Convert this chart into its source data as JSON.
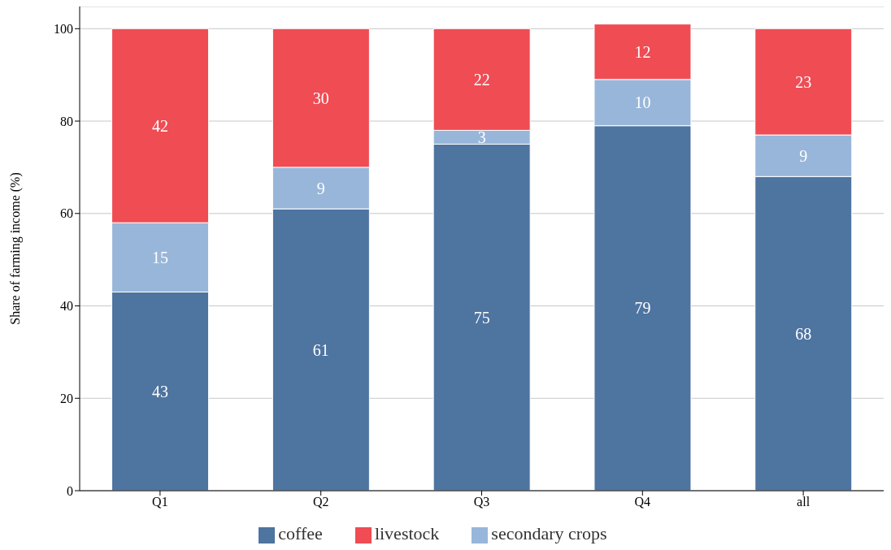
{
  "chart_data": {
    "type": "bar",
    "stacked": true,
    "ylabel": "Share of farming income (%)",
    "categories": [
      "Q1",
      "Q2",
      "Q3",
      "Q4",
      "all"
    ],
    "series": [
      {
        "name": "coffee",
        "color": "#4e74a0",
        "values": [
          43,
          61,
          75,
          79,
          68
        ]
      },
      {
        "name": "secondary crops",
        "color": "#98b6d9",
        "values": [
          15,
          9,
          3,
          10,
          9
        ]
      },
      {
        "name": "livestock",
        "color": "#ef4c54",
        "values": [
          42,
          30,
          22,
          12,
          23
        ]
      }
    ],
    "ylim": [
      0,
      104.8
    ],
    "yticks": [
      0,
      20,
      40,
      60,
      80,
      100
    ],
    "grid": "y",
    "legend": "bottom",
    "data_labels": true
  }
}
